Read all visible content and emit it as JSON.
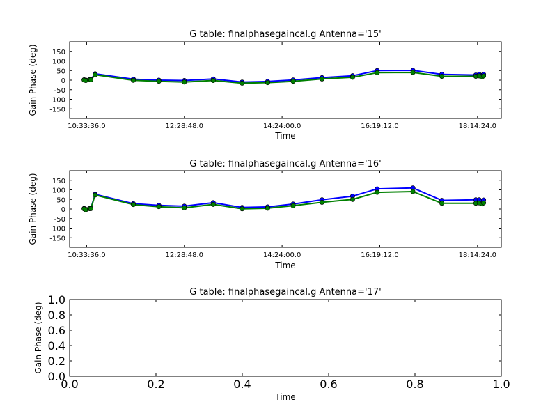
{
  "figure": {
    "background": "#ffffff",
    "series_colors": [
      "#0000ff",
      "#008000"
    ],
    "marker_color": "#008000"
  },
  "chart_data": [
    {
      "type": "line",
      "title": "G table: finalphasegaincal.g      Antenna='15'",
      "xlabel": "Time",
      "ylabel": "Gain Phase (deg)",
      "x_ticks": [
        "10:33:36.0",
        "12:28:48.0",
        "14:24:00.0",
        "16:19:12.0",
        "18:14:24.0"
      ],
      "x_tick_seconds": [
        37920,
        44820,
        51720,
        58620,
        65520
      ],
      "x_range_seconds": [
        36720,
        67200
      ],
      "ylim": [
        -200,
        200
      ],
      "y_ticks": [
        -150,
        -100,
        -50,
        0,
        50,
        100,
        150
      ],
      "x_seconds": [
        37740,
        37860,
        38130,
        38220,
        38520,
        41220,
        43020,
        44820,
        46860,
        48900,
        50700,
        52500,
        54540,
        56700,
        58440,
        60960,
        63000,
        65400,
        65640,
        65850,
        65950
      ],
      "series": [
        {
          "values": [
            2,
            0,
            4,
            4,
            33,
            5,
            0,
            -2,
            6,
            -10,
            -7,
            1,
            13,
            23,
            50,
            51,
            30,
            27,
            30,
            25,
            30
          ]
        },
        {
          "values": [
            1,
            -2,
            2,
            2,
            28,
            -1,
            -6,
            -10,
            -2,
            -16,
            -13,
            -6,
            6,
            15,
            39,
            40,
            20,
            20,
            22,
            18,
            22
          ]
        }
      ]
    },
    {
      "type": "line",
      "title": "G table: finalphasegaincal.g      Antenna='16'",
      "xlabel": "Time",
      "ylabel": "Gain Phase (deg)",
      "x_ticks": [
        "10:33:36.0",
        "12:28:48.0",
        "14:24:00.0",
        "16:19:12.0",
        "18:14:24.0"
      ],
      "x_tick_seconds": [
        37920,
        44820,
        51720,
        58620,
        65520
      ],
      "x_range_seconds": [
        36720,
        67200
      ],
      "ylim": [
        -200,
        200
      ],
      "y_ticks": [
        -150,
        -100,
        -50,
        0,
        50,
        100,
        150
      ],
      "x_seconds": [
        37740,
        37860,
        38130,
        38220,
        38520,
        41220,
        43020,
        44820,
        46860,
        48900,
        50700,
        52500,
        54540,
        56700,
        58440,
        60960,
        63000,
        65400,
        65640,
        65850,
        65950
      ],
      "series": [
        {
          "values": [
            3,
            -2,
            4,
            4,
            77,
            28,
            19,
            15,
            33,
            8,
            11,
            26,
            48,
            67,
            105,
            110,
            45,
            48,
            48,
            42,
            47
          ]
        },
        {
          "values": [
            1,
            -4,
            2,
            2,
            73,
            23,
            12,
            6,
            24,
            1,
            4,
            17,
            35,
            50,
            87,
            91,
            30,
            30,
            32,
            27,
            32
          ]
        }
      ]
    },
    {
      "type": "line",
      "title": "G table: finalphasegaincal.g      Antenna='17'",
      "xlabel": "Time",
      "ylabel": "Gain Phase (deg)",
      "x_ticks": [
        "0.0",
        "0.2",
        "0.4",
        "0.6",
        "0.8",
        "1.0"
      ],
      "y_ticks": [
        "0.0",
        "0.2",
        "0.4",
        "0.6",
        "0.8",
        "1.0"
      ],
      "xlim": [
        0,
        1
      ],
      "ylim": [
        0,
        1
      ],
      "series": []
    }
  ]
}
